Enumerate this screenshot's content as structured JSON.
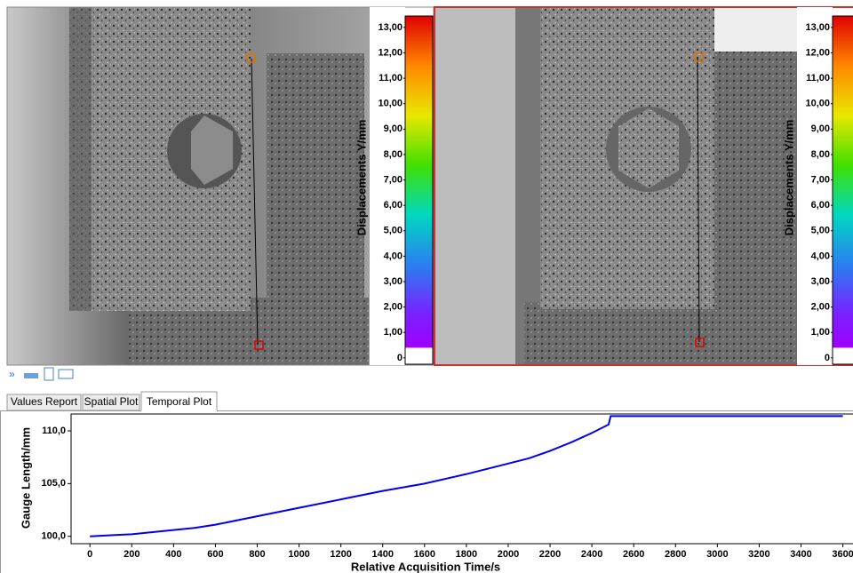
{
  "colorbar": {
    "label": "Displacements Y/mm",
    "lim": [
      -0.25,
      13.45
    ],
    "ticks": [
      0,
      {
        "value": 1,
        "label": "1,00"
      },
      {
        "value": 2,
        "label": "2,00"
      },
      {
        "value": 3,
        "label": "3,00"
      },
      {
        "value": 4,
        "label": "4,00"
      },
      {
        "value": 5,
        "label": "5,00"
      },
      {
        "value": 6,
        "label": "6,00"
      },
      {
        "value": 7,
        "label": "7,00"
      },
      {
        "value": 8,
        "label": "8,00"
      },
      {
        "value": 9,
        "label": "9,00"
      },
      {
        "value": 10,
        "label": "10,00"
      },
      {
        "value": 11,
        "label": "11,00"
      },
      {
        "value": 12,
        "label": "12,00"
      },
      {
        "value": 13,
        "label": "13,00"
      }
    ]
  },
  "tabs": [
    "Values Report",
    "Spatial Plot",
    "Temporal Plot"
  ],
  "active_tab": 2,
  "chart_data": {
    "type": "line",
    "xlabel": "Relative Acquisition Time/s",
    "ylabel": "Gauge Length/mm",
    "x": [
      0,
      100,
      200,
      300,
      400,
      500,
      600,
      700,
      800,
      900,
      1000,
      1200,
      1400,
      1600,
      1800,
      2000,
      2100,
      2200,
      2300,
      2400,
      2480,
      2490,
      3600
    ],
    "values": [
      100.0,
      100.1,
      100.2,
      100.4,
      100.6,
      100.8,
      101.1,
      101.5,
      101.9,
      102.3,
      102.7,
      103.5,
      104.3,
      105.0,
      105.9,
      106.9,
      107.4,
      108.1,
      108.9,
      109.8,
      110.6,
      111.4,
      111.4
    ],
    "color": "#0000ee",
    "xlim": [
      -90,
      3640
    ],
    "ylim": [
      99.3,
      111.6
    ],
    "xticks": [
      0,
      200,
      400,
      600,
      800,
      1000,
      1200,
      1400,
      1600,
      1800,
      2000,
      2200,
      2400,
      2600,
      2800,
      3000,
      3200,
      3400,
      3600
    ],
    "yticks": [
      {
        "value": 100,
        "label": "100,0"
      },
      {
        "value": 105,
        "label": "105,0"
      },
      {
        "value": 110,
        "label": "110,0"
      }
    ],
    "grid": false
  }
}
